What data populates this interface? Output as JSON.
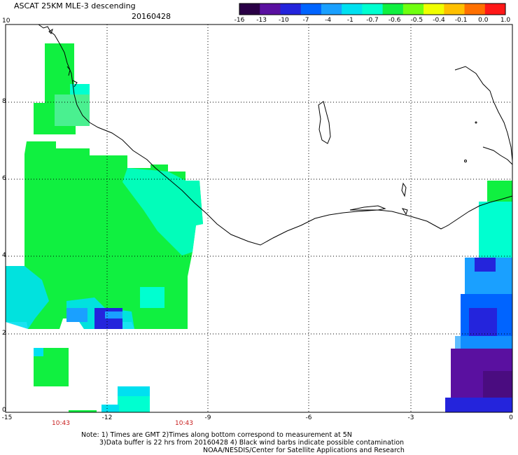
{
  "header": {
    "title": "ASCAT 25KM MLE-3 descending",
    "date": "20160428"
  },
  "colorbar": {
    "labels": [
      "-16",
      "-13",
      "-10",
      "-7",
      "-4",
      "-1",
      "-0.7",
      "-0.6",
      "-0.5",
      "-0.4",
      "-0.1",
      "0.0",
      "1.0"
    ],
    "colors": [
      "#2a0046",
      "#5a10a0",
      "#2424dc",
      "#0064ff",
      "#1aa0ff",
      "#00e0f0",
      "#00ffd0",
      "#10f040",
      "#70ff10",
      "#f0ff00",
      "#ffc000",
      "#ff7000",
      "#ff1818"
    ]
  },
  "axes": {
    "x_ticks": [
      "-15",
      "-12",
      "-9",
      "-6",
      "-3",
      "0"
    ],
    "y_ticks": [
      "10",
      "8",
      "6",
      "4",
      "2",
      "0"
    ]
  },
  "pass_times": [
    "10:43",
    "10:43"
  ],
  "notes": {
    "line1": "Note: 1) Times are GMT 2)Times along bottom correspond to measurement at 5N",
    "line2": "3)Data buffer is 22 hrs from 20160428 4) Black wind barbs indicate possible contamination",
    "line3": "NOAA/NESDIS/Center for Satellite Applications and Research"
  }
}
